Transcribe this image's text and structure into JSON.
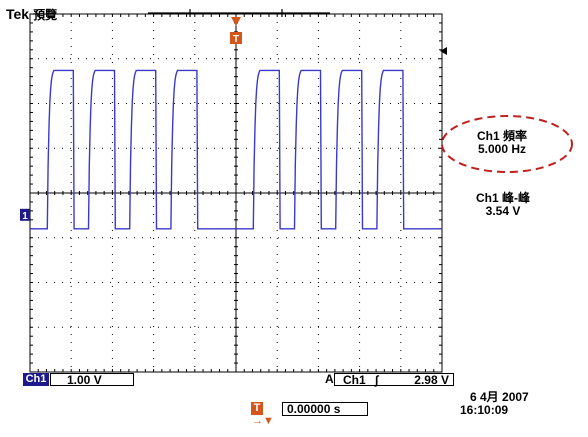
{
  "header": {
    "brand": "Tek",
    "mode": "預覽"
  },
  "measurements": {
    "freq_label": "Ch1 頻率",
    "freq_value": "5.000 Hz",
    "pp_label": "Ch1 峰-峰",
    "pp_value": "3.54 V"
  },
  "footer": {
    "ch1_label": "Ch1",
    "ch1_scale": "1.00 V",
    "trigger_mode": "A",
    "trigger_source": "Ch1",
    "trigger_slope": "∫",
    "trigger_level": "2.98 V",
    "date": "6 4月 2007",
    "time": "16:10:09",
    "horizontal_position": "0.00000 s",
    "trigger_marker": "T",
    "ground_marker": "1"
  },
  "colors": {
    "trace": "#3a3ac8",
    "grid": "#000000",
    "highlight_ellipse": "#c02020",
    "trigger_marker": "#d4561a",
    "channel_badge": "#1d1a8c"
  },
  "chart_data": {
    "type": "line",
    "title": "",
    "xlabel": "",
    "ylabel": "",
    "volts_per_div": 1.0,
    "x_divisions": 10,
    "y_divisions": 8,
    "series": [
      {
        "name": "Ch1",
        "period_div": 1.0,
        "low_div": 0.0,
        "high_div": 3.54,
        "rise_edges_div": [
          0.42,
          1.42,
          2.42,
          3.42,
          5.42,
          6.42,
          7.42,
          8.42
        ],
        "fall_edges_div": [
          1.05,
          2.05,
          3.05,
          4.05,
          6.05,
          7.05,
          8.05,
          9.05
        ]
      }
    ]
  }
}
